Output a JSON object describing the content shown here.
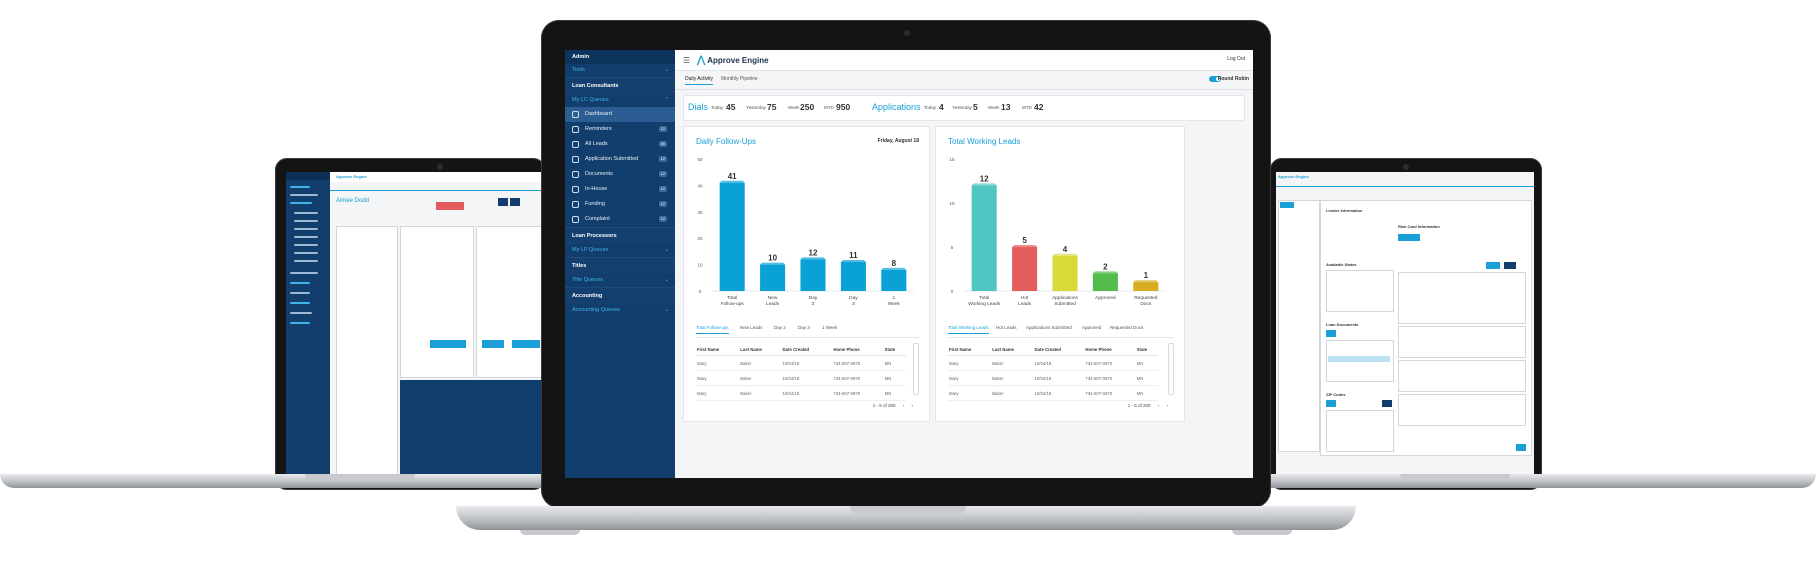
{
  "app": {
    "brand": "Approve Engine",
    "logout": "Log Out"
  },
  "sidebar": {
    "admin": "Admin",
    "tools": "Tools",
    "loan_consultants": "Loan Consultants",
    "my_lc_queues": "My LC Queues",
    "items": [
      {
        "label": "Dashboard",
        "icon": "dashboard-icon",
        "count": ""
      },
      {
        "label": "Reminders",
        "icon": "bell-icon",
        "count": "12"
      },
      {
        "label": "All Leads",
        "icon": "users-icon",
        "count": "36"
      },
      {
        "label": "Application Submitted",
        "icon": "thumbs-up-icon",
        "count": "12"
      },
      {
        "label": "Documents",
        "icon": "document-icon",
        "count": "12"
      },
      {
        "label": "In-House",
        "icon": "in-house-icon",
        "count": "12"
      },
      {
        "label": "Funding",
        "icon": "funding-icon",
        "count": "12"
      },
      {
        "label": "Complaint",
        "icon": "complaint-icon",
        "count": "12"
      }
    ],
    "loan_processors": "Loan Processors",
    "my_lp_queues": "My LP Queues",
    "titles": "Titles",
    "title_queues": "Title Queues",
    "accounting": "Accounting",
    "accounting_queues": "Accounting Queues"
  },
  "tabs": {
    "daily_activity": "Daily Activity",
    "monthly_pipeline": "Monthly Pipeline",
    "round_robin": "Round Robin"
  },
  "stats": {
    "dials": {
      "title": "Dials",
      "today_label": "Today",
      "today": "45",
      "yesterday_label": "Yesterday",
      "yesterday": "75",
      "week_label": "Week",
      "week": "250",
      "mtd_label": "MTD",
      "mtd": "950"
    },
    "applications": {
      "title": "Applications",
      "today_label": "Today",
      "today": "4",
      "yesterday_label": "Yesterday",
      "yesterday": "5",
      "week_label": "Week",
      "week": "13",
      "mtd_label": "MTD",
      "mtd": "42"
    }
  },
  "followups": {
    "title": "Daily Follow-Ups",
    "date": "Friday, August 18",
    "tabs": [
      "Total Follow-ups",
      "New Leads",
      "Day 2",
      "Day 3",
      "1 Week"
    ],
    "columns": [
      "First Name",
      "Last Name",
      "Date Created",
      "Home Phone",
      "State"
    ],
    "rows": [
      [
        "Mary",
        "Baker",
        "10/04/18",
        "734-607-0870",
        "MN"
      ],
      [
        "Mary",
        "Baker",
        "10/04/18",
        "734-607-0870",
        "MN"
      ],
      [
        "Mary",
        "Baker",
        "10/04/18",
        "734-607-0870",
        "MN"
      ]
    ],
    "pager": "1 - 5 of 200"
  },
  "working": {
    "title": "Total Working Leads",
    "tabs": [
      "Total Working Leads",
      "Hot Leads",
      "Applications Submitted",
      "Approved",
      "Requested Docs"
    ],
    "columns": [
      "First Name",
      "Last Name",
      "Date Created",
      "Home Phone",
      "State"
    ],
    "rows": [
      [
        "Mary",
        "Baker",
        "10/04/18",
        "734-607-0870",
        "MN"
      ],
      [
        "Mary",
        "Baker",
        "10/04/18",
        "734-607-0870",
        "MN"
      ],
      [
        "Mary",
        "Baker",
        "10/04/18",
        "734-607-0870",
        "MN"
      ]
    ],
    "pager": "1 - 5 of 200"
  },
  "chart_data": [
    {
      "type": "bar",
      "categories": [
        "Total Follow-ups",
        "New Leads",
        "Day 2",
        "Day 3",
        "1 Week"
      ],
      "values": [
        41,
        10,
        12,
        11,
        8
      ],
      "ylim": [
        0,
        50
      ],
      "yticks": [
        0,
        10,
        20,
        30,
        40,
        50
      ],
      "colors": [
        "#0aa2d6",
        "#0aa2d6",
        "#0aa2d6",
        "#0aa2d6",
        "#0aa2d6"
      ]
    },
    {
      "type": "bar",
      "categories": [
        "Total Working Leads",
        "Hot Leads",
        "Applications Submitted",
        "Approved",
        "Requested Docs"
      ],
      "values": [
        12,
        5,
        4,
        2,
        1
      ],
      "ylim": [
        0,
        15
      ],
      "yticks": [
        0,
        5,
        10,
        15
      ],
      "colors": [
        "#4fc6c2",
        "#e35d5d",
        "#d9d93a",
        "#52bb4a",
        "#d7ad1e"
      ]
    }
  ]
}
